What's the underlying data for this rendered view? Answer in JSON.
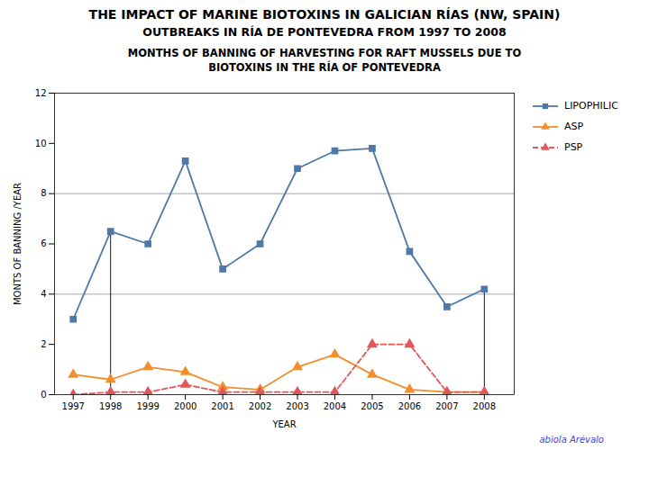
{
  "chart_data": {
    "type": "line",
    "title": "THE IMPACT OF MARINE BIOTOXINS IN GALICIAN RÍAS (NW, SPAIN)",
    "subtitle": "OUTBREAKS IN RÍA DE PONTEVEDRA FROM 1997 TO 2008",
    "chart_title": [
      "MONTHS OF BANNING OF HARVESTING FOR RAFT MUSSELS DUE TO",
      "BIOTOXINS IN THE RÍA OF PONTEVEDRA"
    ],
    "xlabel": "YEAR",
    "ylabel": "MONTS OF BANNING /YEAR",
    "x": [
      1997,
      1998,
      1999,
      2000,
      2001,
      2002,
      2003,
      2004,
      2005,
      2006,
      2007,
      2008
    ],
    "series": [
      {
        "name": "LIPOPHILIC",
        "values": [
          3.0,
          6.5,
          6.0,
          9.3,
          5.0,
          6.0,
          9.0,
          9.7,
          9.8,
          5.7,
          3.5,
          4.2
        ],
        "marker": "square",
        "line_style": "solid"
      },
      {
        "name": "ASP",
        "values": [
          0.8,
          0.6,
          1.1,
          0.9,
          0.3,
          0.2,
          1.1,
          1.6,
          0.8,
          0.2,
          0.1,
          0.1
        ],
        "marker": "triangle",
        "line_style": "solid"
      },
      {
        "name": "PSP",
        "values": [
          0.0,
          0.1,
          0.1,
          0.4,
          0.1,
          0.1,
          0.1,
          0.1,
          2.0,
          2.0,
          0.1,
          0.1
        ],
        "marker": "triangle",
        "line_style": "dashed"
      }
    ],
    "xlim": [
      1996.5,
      2008.8
    ],
    "xticks": [
      1997,
      1998,
      1999,
      2000,
      2001,
      2002,
      2003,
      2004,
      2005,
      2006,
      2007,
      2008
    ],
    "ylim": [
      0,
      12
    ],
    "yticks": [
      0,
      2,
      4,
      6,
      8,
      10,
      12
    ],
    "hlines": [
      4,
      8
    ],
    "vlines": [
      {
        "x": 1998,
        "top": 6.5
      },
      {
        "x": 2008,
        "top": 4.2
      }
    ],
    "legend": "right",
    "annotations": [
      "abiola Arévalo"
    ]
  }
}
